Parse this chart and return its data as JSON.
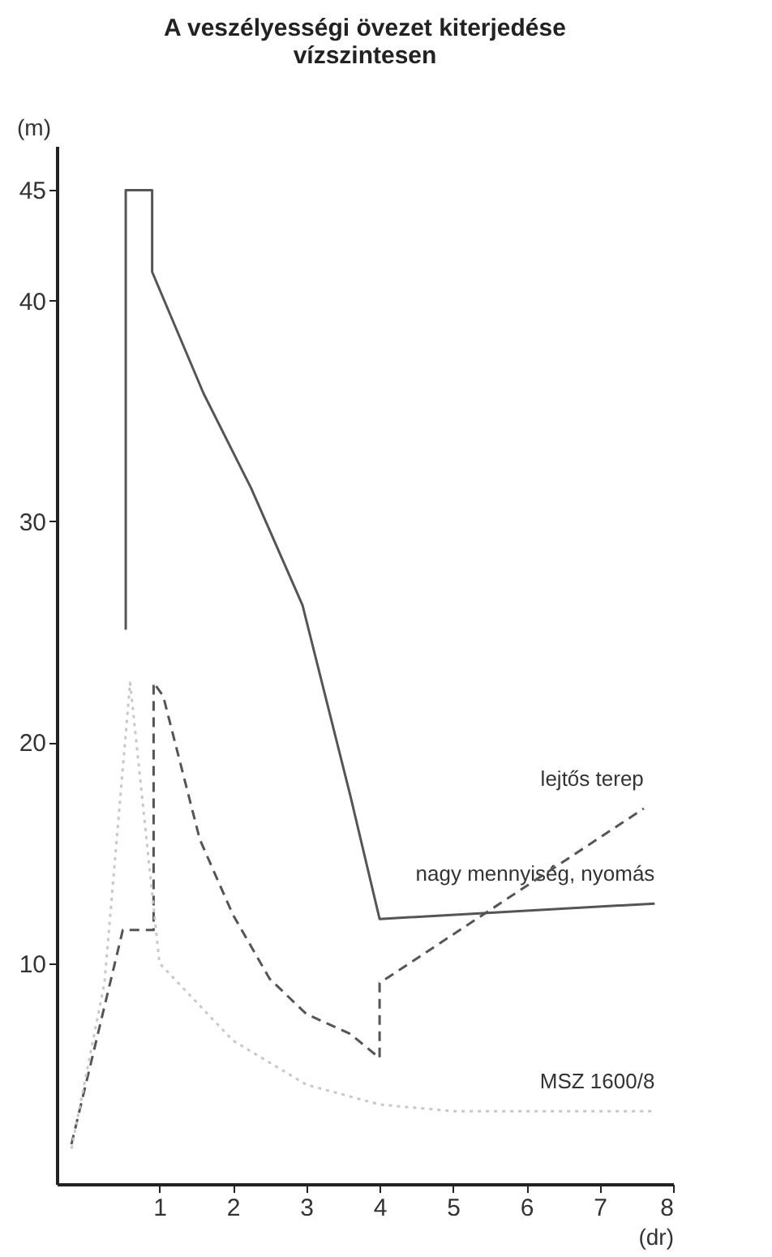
{
  "chart_data": {
    "type": "line",
    "title": "A veszélyességi övezet kiterjedése vízszintesen",
    "xlabel": "(dr)",
    "ylabel": "(m)",
    "xlim": [
      -0.4,
      8
    ],
    "xticks": [
      1,
      2,
      3,
      4,
      5,
      6,
      7,
      8
    ],
    "ylim": [
      0,
      47
    ],
    "yticks": [
      10,
      20,
      30,
      40,
      45
    ],
    "grid": false,
    "marker": "none",
    "series": [
      {
        "name": "nagy mennyiség, nyomás",
        "color": "#555555",
        "line_style": "solid",
        "x": [
          0.54,
          0.54,
          0.9,
          0.9,
          1.6,
          2.25,
          2.95,
          3.6,
          4,
          7.75
        ],
        "values": [
          25.1,
          45,
          45,
          41.3,
          35.8,
          31.5,
          26.2,
          17.6,
          12.0,
          12.7
        ]
      },
      {
        "name": "lejtős terep",
        "color": "#555555",
        "line_style": "dashed",
        "x": [
          -0.2,
          0.5,
          0.92,
          0.92,
          1.05,
          1.55,
          2.0,
          2.5,
          3.0,
          3.6,
          4,
          4,
          7.6
        ],
        "values": [
          1.8,
          11.5,
          11.5,
          22.7,
          22.1,
          15.6,
          12.2,
          9.3,
          7.7,
          6.8,
          5.7,
          9.1,
          17.0
        ]
      },
      {
        "name": "MSZ 1600/8",
        "color": "#c8c8c8",
        "line_style": "dotted",
        "x": [
          -0.2,
          0.25,
          0.6,
          1.0,
          2,
          3,
          4,
          5,
          7.75
        ],
        "values": [
          1.6,
          9.1,
          22.7,
          10,
          6.5,
          4.5,
          3.6,
          3.3,
          3.3
        ]
      }
    ]
  }
}
